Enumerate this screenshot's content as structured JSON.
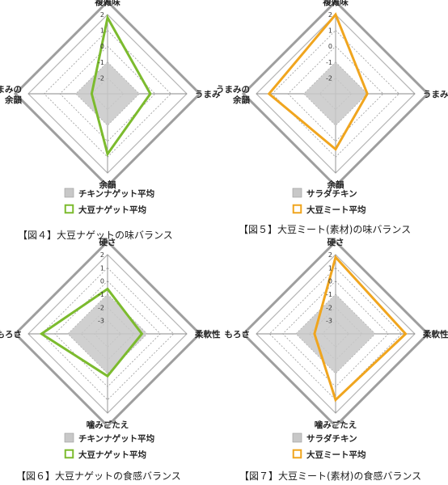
{
  "chart_data": [
    {
      "type": "radar",
      "caption": "【図４】大豆ナゲットの味バランス",
      "axes": [
        "複雑味",
        "うまみ",
        "余韻",
        "うまみの\n余韻"
      ],
      "rlim": [
        -3,
        2
      ],
      "ticks": [
        "2",
        "1",
        "0",
        "-1",
        "-2"
      ],
      "series": [
        {
          "name": "チキンナゲット平均",
          "values": [
            -1,
            -1,
            -1,
            -1
          ],
          "color": "#c8c8c8",
          "style": "fill"
        },
        {
          "name": "大豆ナゲット平均",
          "values": [
            1.8,
            -0.3,
            0.8,
            -2.0
          ],
          "color": "#7cbb2e",
          "style": "line"
        }
      ]
    },
    {
      "type": "radar",
      "caption": "【図５】大豆ミート(素材)の味バランス",
      "axes": [
        "複雑味",
        "うまみ",
        "余韻",
        "うまみの\n余韻"
      ],
      "rlim": [
        -3,
        2
      ],
      "ticks": [
        "2",
        "1",
        "0",
        "-1",
        "-2"
      ],
      "series": [
        {
          "name": "サラダチキン",
          "values": [
            -1,
            -1,
            -1,
            -1
          ],
          "color": "#c8c8c8",
          "style": "fill"
        },
        {
          "name": "大豆ミート平均",
          "values": [
            2.0,
            -1.0,
            0.5,
            1.2
          ],
          "color": "#f0a51e",
          "style": "line"
        }
      ]
    },
    {
      "type": "radar",
      "caption": "【図６】大豆ナゲットの食感バランス",
      "axes": [
        "硬さ",
        "柔軟性",
        "噛みごたえ",
        "もろさ"
      ],
      "rlim": [
        -4,
        2
      ],
      "ticks": [
        "2",
        "1",
        "0",
        "-1",
        "-2",
        "-3"
      ],
      "series": [
        {
          "name": "チキンナゲット平均",
          "values": [
            -1,
            -1,
            -1,
            -1
          ],
          "color": "#c8c8c8",
          "style": "fill"
        },
        {
          "name": "大豆ナゲット平均",
          "values": [
            -0.6,
            -1.4,
            -0.8,
            1.0
          ],
          "color": "#7cbb2e",
          "style": "line"
        }
      ]
    },
    {
      "type": "radar",
      "caption": "【図７】大豆ミート(素材)の食感バランス",
      "axes": [
        "硬さ",
        "柔軟性",
        "噛みごたえ",
        "もろさ"
      ],
      "rlim": [
        -4,
        2
      ],
      "ticks": [
        "2",
        "1",
        "0",
        "-1",
        "-2",
        "-3"
      ],
      "series": [
        {
          "name": "サラダチキン",
          "values": [
            -1,
            -1,
            -1,
            -1
          ],
          "color": "#c8c8c8",
          "style": "fill"
        },
        {
          "name": "大豆ミート平均",
          "values": [
            1.8,
            1.3,
            1.0,
            -2.4
          ],
          "color": "#f0a51e",
          "style": "line"
        }
      ]
    }
  ]
}
